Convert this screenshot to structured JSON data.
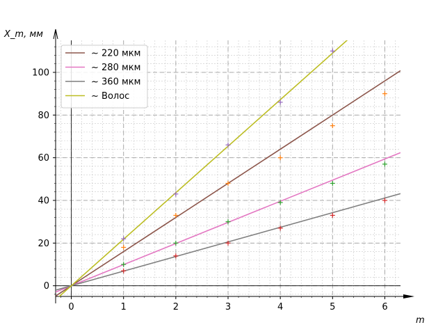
{
  "chart_data": {
    "type": "line",
    "title": "",
    "xlabel": "m",
    "ylabel": "X_m, мм",
    "xlim": [
      -0.3,
      6.3
    ],
    "ylim": [
      -5,
      115
    ],
    "xticks": [
      0,
      1,
      2,
      3,
      4,
      5,
      6
    ],
    "yticks": [
      0,
      20,
      40,
      60,
      80,
      100
    ],
    "grid": true,
    "legend_position": "top-left",
    "series": [
      {
        "name": "~ 220 мкм",
        "color": "#8c564b",
        "marker_color": "#ff7f0e",
        "slope": 16,
        "points": [
          [
            1,
            18
          ],
          [
            2,
            33
          ],
          [
            3,
            48
          ],
          [
            4,
            60
          ],
          [
            5,
            75
          ],
          [
            6,
            90
          ]
        ]
      },
      {
        "name": "~ 280 мкм",
        "color": "#e377c2",
        "marker_color": "#2ca02c",
        "slope": 9.9,
        "points": [
          [
            1,
            10
          ],
          [
            2,
            20
          ],
          [
            3,
            30
          ],
          [
            4,
            39
          ],
          [
            5,
            48
          ],
          [
            6,
            57
          ]
        ]
      },
      {
        "name": "~ 360 мкм",
        "color": "#7f7f7f",
        "marker_color": "#d62728",
        "slope": 6.85,
        "points": [
          [
            1,
            7
          ],
          [
            2,
            14
          ],
          [
            3,
            20
          ],
          [
            4,
            27
          ],
          [
            5,
            33
          ],
          [
            6,
            40
          ]
        ]
      },
      {
        "name": "~ Волос",
        "color": "#bcbd22",
        "marker_color": "#9467bd",
        "slope": 21.8,
        "points": [
          [
            1,
            22
          ],
          [
            2,
            43
          ],
          [
            3,
            66
          ],
          [
            4,
            86
          ],
          [
            5,
            110
          ]
        ]
      }
    ]
  }
}
